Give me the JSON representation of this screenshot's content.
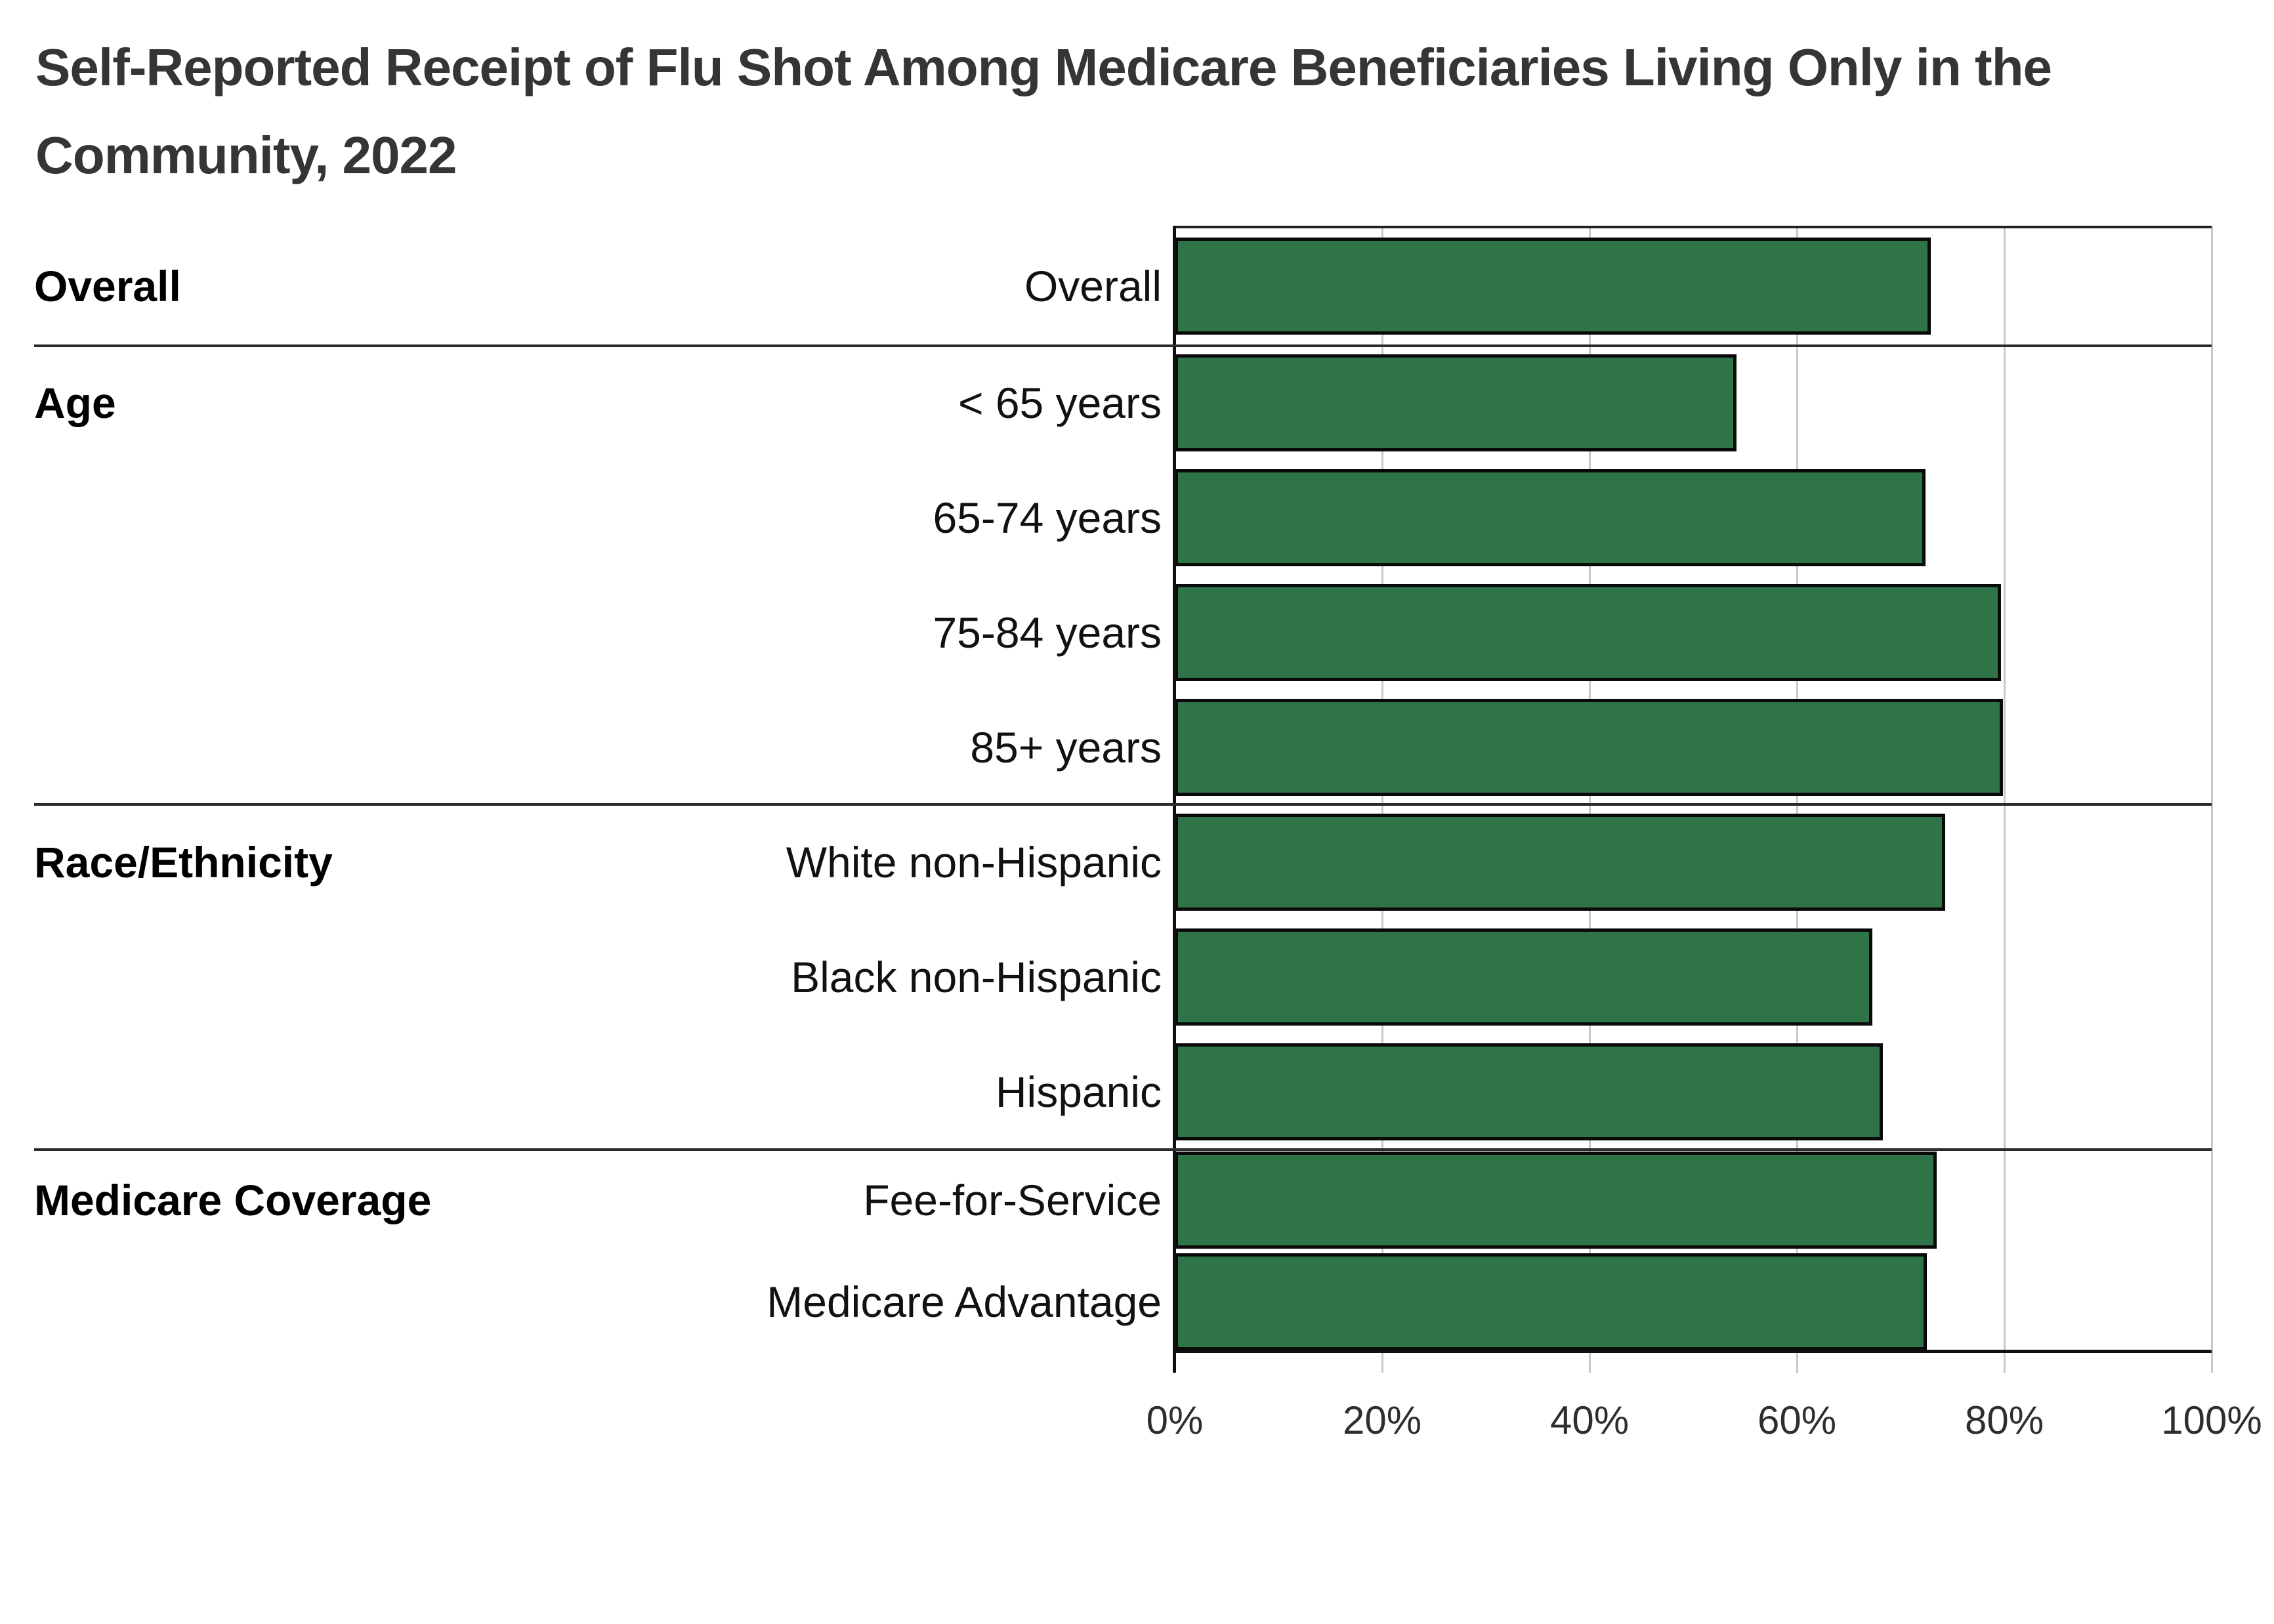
{
  "title_line1": "Self-Reported Receipt of Flu Shot Among Medicare Beneficiaries Living Only in the",
  "title_line2": "Community, 2022",
  "chart_data": {
    "type": "bar",
    "orientation": "horizontal",
    "title": "Self-Reported Receipt of Flu Shot Among Medicare Beneficiaries Living Only in the Community, 2022",
    "xlabel": "",
    "ylabel": "",
    "xlim": [
      0,
      100
    ],
    "x_ticks": [
      "0%",
      "20%",
      "40%",
      "60%",
      "80%",
      "100%"
    ],
    "grid": true,
    "legend": "none",
    "bar_color": "#2F7449",
    "bar_border_color": "#0a0a0a",
    "gridline_color": "#c9c9c9",
    "sections": [
      {
        "label": "Overall",
        "rows": [
          {
            "label": "Overall",
            "value": 72.9
          }
        ]
      },
      {
        "label": "Age",
        "rows": [
          {
            "label": "< 65 years",
            "value": 54.2
          },
          {
            "label": "65-74 years",
            "value": 72.4
          },
          {
            "label": "75-84 years",
            "value": 79.7
          },
          {
            "label": "85+ years",
            "value": 79.9
          }
        ]
      },
      {
        "label": "Race/Ethnicity",
        "rows": [
          {
            "label": "White non-Hispanic",
            "value": 74.3
          },
          {
            "label": "Black non-Hispanic",
            "value": 67.3
          },
          {
            "label": "Hispanic",
            "value": 68.3
          }
        ]
      },
      {
        "label": "Medicare Coverage",
        "rows": [
          {
            "label": "Fee-for-Service",
            "value": 73.5
          },
          {
            "label": "Medicare Advantage",
            "value": 72.5
          }
        ]
      }
    ]
  }
}
